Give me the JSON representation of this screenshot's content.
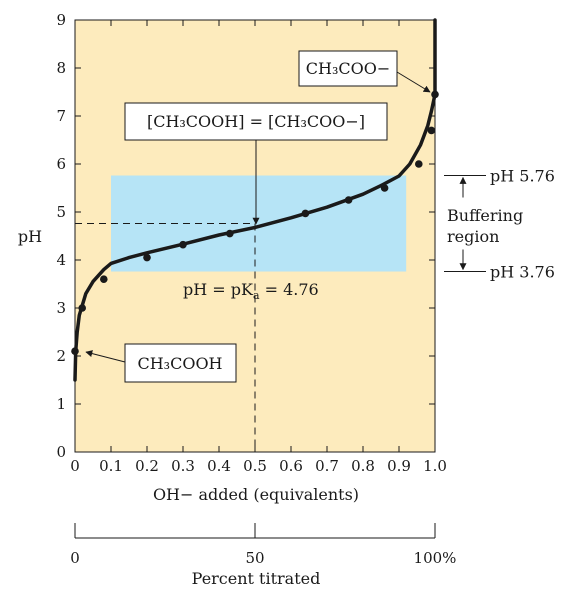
{
  "chart_data": {
    "type": "line",
    "xlabel": "OH− added (equivalents)",
    "ylabel": "pH",
    "xlim": [
      0,
      1.0
    ],
    "ylim": [
      0,
      9
    ],
    "xticks": [
      "0",
      "0.1",
      "0.2",
      "0.3",
      "0.4",
      "0.5",
      "0.6",
      "0.7",
      "0.8",
      "0.9",
      "1.0"
    ],
    "yticks": [
      "0",
      "1",
      "2",
      "3",
      "4",
      "5",
      "6",
      "7",
      "8",
      "9"
    ],
    "secondary_axis": {
      "label": "Percent titrated",
      "ticks": [
        "0",
        "50",
        "100%"
      ]
    },
    "series": [
      {
        "curve_x": [
          0,
          0.002,
          0.006,
          0.012,
          0.02,
          0.03,
          0.05,
          0.08,
          0.1,
          0.15,
          0.2,
          0.3,
          0.4,
          0.5,
          0.6,
          0.7,
          0.8,
          0.85,
          0.9,
          0.93,
          0.96,
          0.98,
          0.99,
          1.0,
          1.0
        ],
        "curve_y": [
          1.5,
          2.1,
          2.5,
          2.85,
          3.05,
          3.3,
          3.55,
          3.8,
          3.93,
          4.05,
          4.15,
          4.33,
          4.52,
          4.68,
          4.88,
          5.1,
          5.37,
          5.55,
          5.75,
          6.0,
          6.4,
          6.8,
          7.1,
          7.45,
          9.0
        ],
        "marker_x": [
          0,
          0.02,
          0.08,
          0.2,
          0.3,
          0.43,
          0.64,
          0.76,
          0.86,
          0.955,
          0.99,
          1.0
        ],
        "marker_y": [
          2.1,
          3.0,
          3.6,
          4.05,
          4.32,
          4.55,
          4.97,
          5.25,
          5.5,
          6.0,
          6.7,
          7.45
        ]
      }
    ],
    "buffer_region": {
      "x_range": [
        0.1,
        0.92
      ],
      "y_range": [
        3.76,
        5.76
      ],
      "label": "Buffering region",
      "upper_label": "pH 5.76",
      "lower_label": "pH 3.76"
    },
    "annotations": {
      "pka": "pH = pK",
      "pka_sub": "a",
      "pka_value": " = 4.76",
      "midpoint": "[CH₃COOH] = [CH₃COO−]",
      "acid": "CH₃COOH",
      "base": "CH₃COO−"
    },
    "colors": {
      "plot_background": "#fdebbd",
      "buffer_region": "#b6e4f6",
      "curve": "#1a1a1a"
    }
  }
}
